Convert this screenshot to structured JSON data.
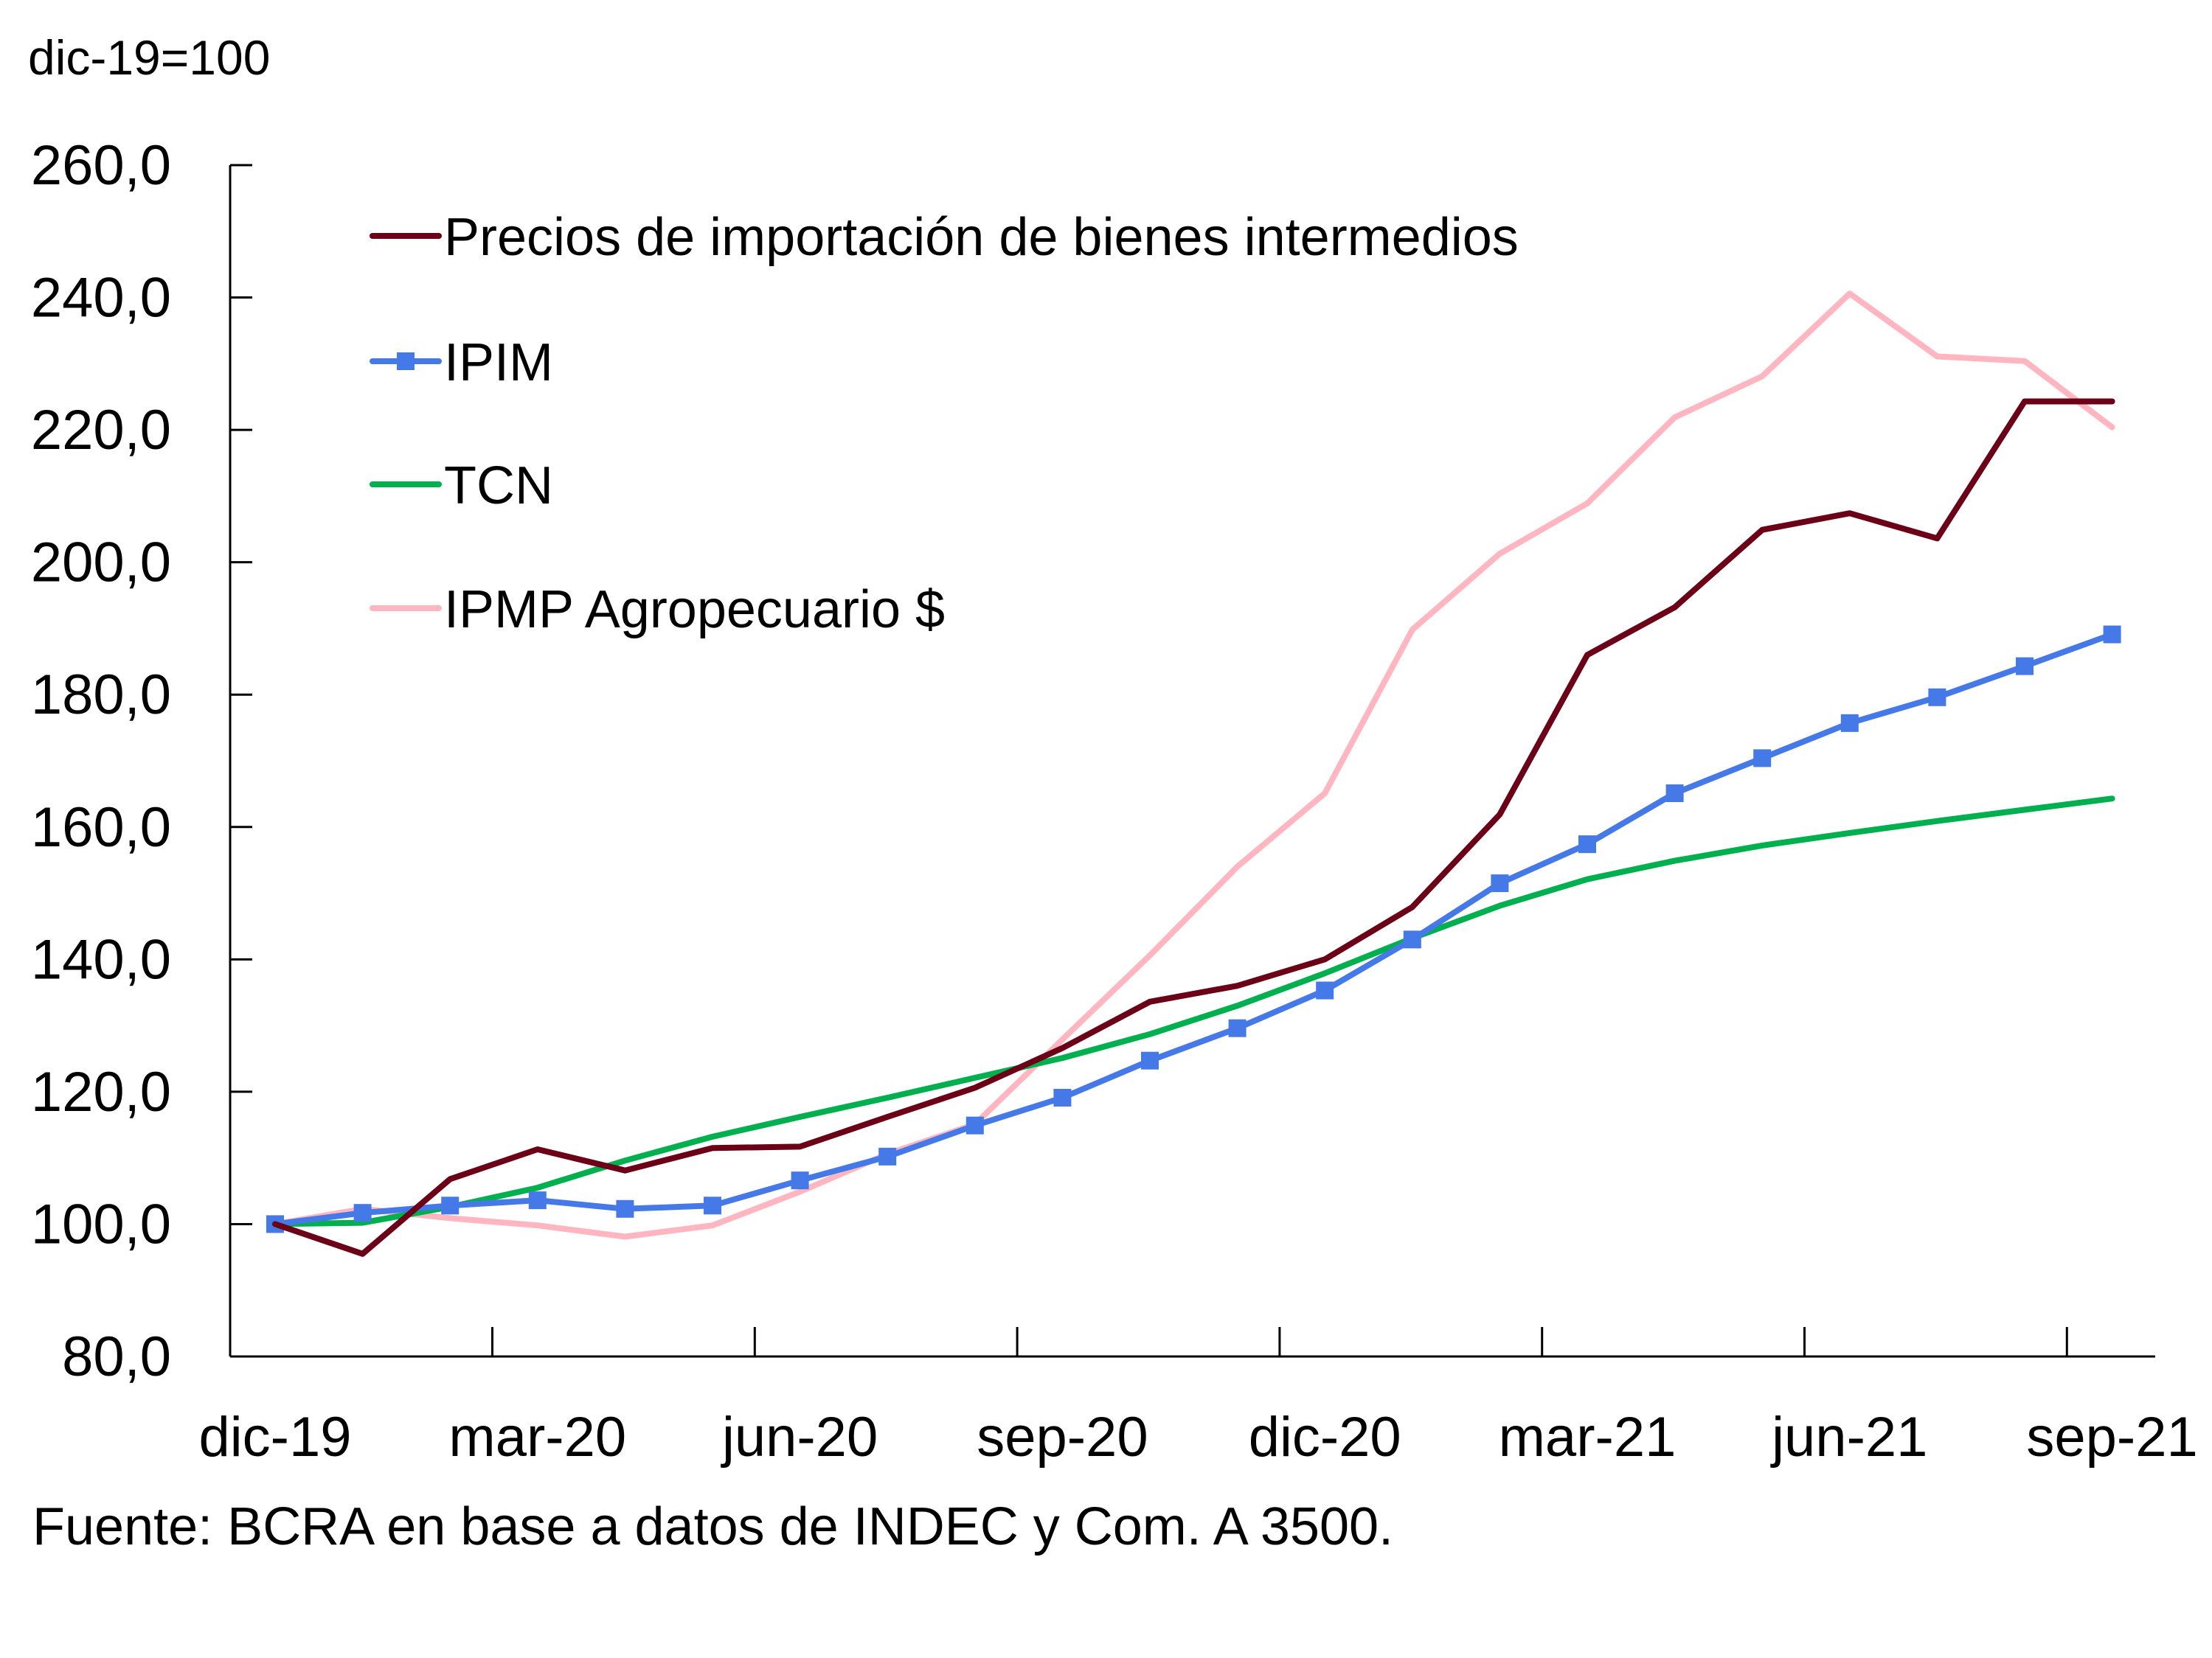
{
  "chart_data": {
    "type": "line",
    "title": "",
    "unit_label": "dic-19=100",
    "source": "Fuente: BCRA en base a datos de INDEC y Com. A 3500.",
    "xlabel": "",
    "ylabel": "dic-19=100",
    "ylim": [
      80,
      260
    ],
    "yticks": [
      80,
      100,
      120,
      140,
      160,
      180,
      200,
      220,
      240,
      260
    ],
    "ytick_labels": [
      "80,0",
      "100,0",
      "120,0",
      "140,0",
      "160,0",
      "180,0",
      "200,0",
      "220,0",
      "240,0",
      "260,0"
    ],
    "x": [
      "dic-19",
      "ene-20",
      "feb-20",
      "mar-20",
      "abr-20",
      "may-20",
      "jun-20",
      "jul-20",
      "ago-20",
      "sep-20",
      "oct-20",
      "nov-20",
      "dic-20",
      "ene-21",
      "feb-21",
      "mar-21",
      "abr-21",
      "may-21",
      "jun-21",
      "jul-21",
      "ago-21",
      "sep-21"
    ],
    "xtick_labels": [
      {
        "index": 0,
        "label": "dic-19"
      },
      {
        "index": 3,
        "label": "mar-20"
      },
      {
        "index": 6,
        "label": "jun-20"
      },
      {
        "index": 9,
        "label": "sep-20"
      },
      {
        "index": 12,
        "label": "dic-20"
      },
      {
        "index": 15,
        "label": "mar-21"
      },
      {
        "index": 18,
        "label": "jun-21"
      },
      {
        "index": 21,
        "label": "sep-21"
      }
    ],
    "grid": false,
    "legend_position": "top-left",
    "series": [
      {
        "name": "Precios de importación de bienes intermedios",
        "color": "#6b0016",
        "marker": "none",
        "values": [
          100.0,
          95.5,
          106.8,
          111.3,
          108.1,
          111.5,
          111.7,
          116.2,
          120.6,
          126.6,
          133.6,
          136.0,
          140.0,
          147.9,
          161.9,
          186.0,
          193.2,
          204.9,
          207.4,
          203.6,
          224.3,
          224.3
        ]
      },
      {
        "name": "IPIM",
        "color": "#4679e8",
        "marker": "square",
        "values": [
          100.0,
          101.7,
          102.8,
          103.6,
          102.3,
          102.8,
          106.6,
          110.2,
          114.9,
          119.1,
          124.7,
          129.6,
          135.3,
          143.0,
          151.5,
          157.4,
          165.1,
          170.4,
          175.7,
          179.6,
          184.3,
          189.1
        ]
      },
      {
        "name": "TCN",
        "color": "#00b04f",
        "marker": "none",
        "values": [
          100.0,
          100.2,
          102.6,
          105.5,
          109.6,
          113.2,
          116.2,
          119.1,
          122.1,
          125.1,
          128.7,
          133.0,
          137.9,
          143.2,
          148.1,
          152.1,
          154.9,
          157.2,
          159.1,
          160.9,
          162.6,
          164.3
        ]
      },
      {
        "name": "IPMP Agropecuario $",
        "color": "#ffb6c1",
        "marker": "none",
        "values": [
          100.0,
          102.3,
          100.9,
          99.8,
          98.1,
          99.8,
          104.9,
          110.6,
          115.1,
          127.9,
          140.6,
          154.0,
          165.1,
          189.8,
          201.3,
          208.9,
          221.9,
          228.1,
          240.6,
          231.1,
          230.4,
          220.4
        ]
      }
    ]
  }
}
